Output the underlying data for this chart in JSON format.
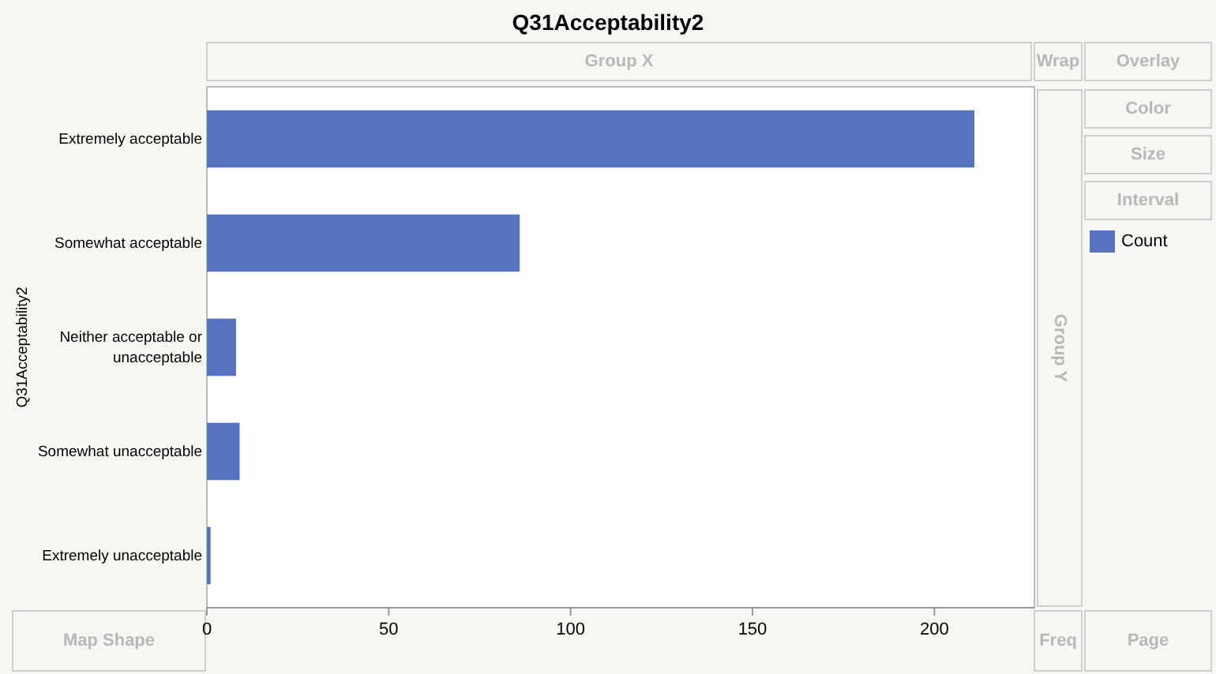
{
  "chart_data": {
    "type": "bar",
    "orientation": "horizontal",
    "title": "Q31Acceptability2",
    "ylabel": "Q31Acceptability2",
    "categories": [
      "Extremely acceptable",
      "Somewhat acceptable",
      "Neither acceptable or unacceptable",
      "Somewhat unacceptable",
      "Extremely unacceptable"
    ],
    "series": [
      {
        "name": "Count",
        "color": "#5773c0",
        "values": [
          211,
          86,
          8,
          9,
          1
        ]
      }
    ],
    "xlim": [
      0,
      227.5
    ],
    "xticks": [
      0,
      50,
      100,
      150,
      200
    ],
    "legend": "right",
    "grid": false,
    "annotations": [
      "Group X",
      "Wrap",
      "Overlay",
      "Color",
      "Size",
      "Interval",
      "Group Y",
      "Map Shape",
      "Freq",
      "Page"
    ]
  }
}
